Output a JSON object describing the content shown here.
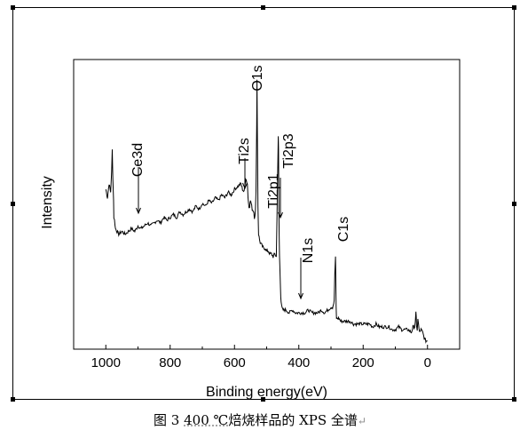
{
  "caption": {
    "prefix": "图 3 ",
    "temp": "400 ℃",
    "rest": "焙烧样品的 XPS 全谱",
    "mark": "↵"
  },
  "chart_data": {
    "type": "line",
    "title": "",
    "xlabel": "Binding energy(eV)",
    "ylabel": "Intensity",
    "xlim": [
      1100,
      -100
    ],
    "ylim": [
      0,
      100
    ],
    "x_reversed": true,
    "y_ticks_shown": false,
    "grid": false,
    "x_ticks": [
      1000,
      800,
      600,
      400,
      200,
      0
    ],
    "x_tick_labels": [
      "1000",
      "800",
      "600",
      "400",
      "200",
      "0"
    ],
    "series": [
      {
        "x": [
          1000,
          995,
          990,
          985,
          982,
          980,
          978,
          976,
          975,
          973,
          970,
          965,
          960,
          950,
          940,
          930,
          920,
          910,
          900,
          890,
          880,
          870,
          860,
          850,
          840,
          830,
          820,
          810,
          800,
          790,
          780,
          770,
          760,
          750,
          740,
          730,
          720,
          710,
          700,
          690,
          680,
          670,
          660,
          650,
          640,
          630,
          620,
          610,
          600,
          590,
          580,
          575,
          570,
          565,
          560,
          558,
          555,
          553,
          550,
          545,
          540,
          538,
          535,
          533,
          531,
          530,
          529,
          527,
          525,
          522,
          520,
          515,
          510,
          505,
          500,
          495,
          490,
          485,
          480,
          475,
          470,
          468,
          466,
          464,
          463,
          462,
          461,
          460,
          459,
          458,
          457,
          456,
          455,
          453,
          450,
          445,
          440,
          430,
          420,
          410,
          400,
          390,
          380,
          370,
          360,
          350,
          340,
          330,
          320,
          310,
          300,
          295,
          290,
          288,
          286,
          285,
          284,
          283,
          282,
          280,
          275,
          270,
          260,
          250,
          240,
          230,
          220,
          210,
          200,
          190,
          180,
          170,
          160,
          150,
          140,
          130,
          120,
          110,
          100,
          90,
          80,
          70,
          60,
          50,
          45,
          40,
          38,
          36,
          35,
          34,
          32,
          30,
          28,
          25,
          20,
          15,
          10,
          5,
          0
        ],
        "values": [
          56,
          53,
          58,
          55,
          62,
          70,
          60,
          52,
          46,
          45,
          42,
          41,
          40,
          41,
          40,
          41,
          42,
          41,
          43,
          42,
          43,
          44,
          43,
          44,
          45,
          44,
          46,
          45,
          46,
          47,
          46,
          48,
          47,
          48,
          49,
          48,
          50,
          49,
          51,
          50,
          52,
          51,
          53,
          52,
          54,
          53,
          55,
          54,
          56,
          57,
          58,
          56,
          55,
          60,
          58,
          53,
          50,
          50,
          52,
          49,
          48,
          46,
          48,
          55,
          80,
          95,
          78,
          50,
          40,
          38,
          37,
          36,
          35,
          35,
          34,
          34,
          33,
          33,
          32,
          33,
          32,
          45,
          60,
          75,
          70,
          48,
          40,
          32,
          28,
          25,
          21,
          18,
          16,
          14,
          13,
          13,
          13,
          12,
          13,
          12,
          12,
          12,
          12,
          13,
          12,
          12,
          12,
          13,
          12,
          13,
          14,
          14,
          16,
          26,
          32,
          24,
          14,
          10,
          10,
          10,
          10,
          9,
          9,
          9,
          9,
          8,
          8,
          8,
          8,
          8,
          8,
          7,
          8,
          7,
          7,
          7,
          7,
          6,
          6,
          7,
          6,
          6,
          6,
          5,
          7,
          7,
          9,
          12,
          10,
          7,
          6,
          10,
          8,
          5,
          6,
          5,
          3,
          2,
          2
        ]
      }
    ],
    "annotations": [
      {
        "label": "Ce3d",
        "x": 900,
        "y": 45
      },
      {
        "label": "Ti2s",
        "x": 565,
        "y": 60
      },
      {
        "label": "O1s",
        "x": 530,
        "y": 95
      },
      {
        "label": "Ti2p1",
        "x": 463,
        "y": 44
      },
      {
        "label": "Ti2p3",
        "x": 459,
        "y": 60
      },
      {
        "label": "N1s",
        "x": 400,
        "y": 14
      },
      {
        "label": "C1s",
        "x": 285,
        "y": 35
      }
    ]
  }
}
